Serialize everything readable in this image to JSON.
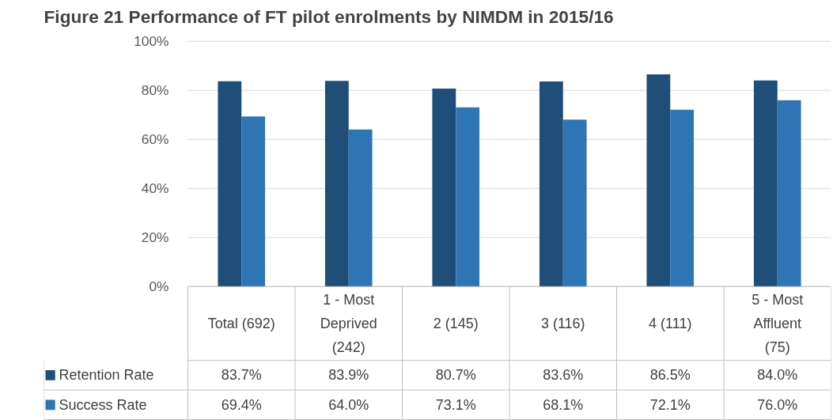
{
  "chart_data": {
    "type": "bar",
    "title": "Figure 21 Performance of FT pilot enrolments by NIMDM in 2015/16",
    "categories": [
      "Total (692)",
      "1 - Most Deprived (242)",
      "2 (145)",
      "3 (116)",
      "4 (111)",
      "5 - Most Affluent (75)"
    ],
    "series": [
      {
        "name": "Retention Rate",
        "color": "#1f4e79",
        "values": [
          83.7,
          83.9,
          80.7,
          83.6,
          86.5,
          84.0
        ],
        "value_labels": [
          "83.7%",
          "83.9%",
          "80.7%",
          "83.6%",
          "86.5%",
          "84.0%"
        ]
      },
      {
        "name": "Success Rate",
        "color": "#2e75b6",
        "values": [
          69.4,
          64.0,
          73.1,
          68.1,
          72.1,
          76.0
        ],
        "value_labels": [
          "69.4%",
          "64.0%",
          "73.1%",
          "68.1%",
          "72.1%",
          "76.0%"
        ]
      }
    ],
    "ylim": [
      0,
      100
    ],
    "yticks": [
      {
        "value": 0,
        "label": "0%"
      },
      {
        "value": 20,
        "label": "20%"
      },
      {
        "value": 40,
        "label": "40%"
      },
      {
        "value": 60,
        "label": "60%"
      },
      {
        "value": 80,
        "label": "80%"
      },
      {
        "value": 100,
        "label": "100%"
      }
    ],
    "grid": "y",
    "legend": "bottom"
  }
}
